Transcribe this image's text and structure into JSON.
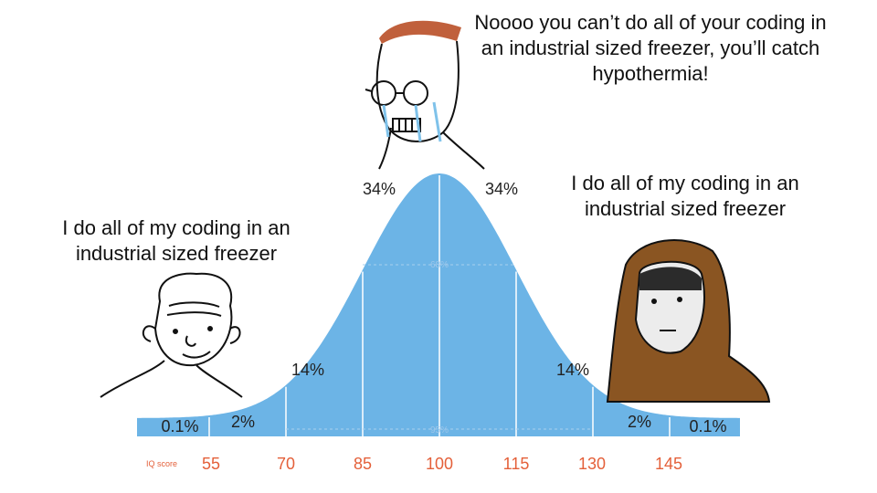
{
  "captions": {
    "top": [
      "Noooo you can’t do all of your coding in",
      "an industrial sized freezer, you’ll catch",
      "hypothermia!"
    ],
    "left": [
      "I do all of my coding in an",
      "industrial sized freezer"
    ],
    "right": [
      "I do all of my coding in an",
      "industrial sized freezer"
    ]
  },
  "curve": {
    "axis_label": "IQ score",
    "ticks": [
      "55",
      "70",
      "85",
      "100",
      "115",
      "130",
      "145"
    ],
    "segment_labels": [
      "0.1%",
      "2%",
      "14%",
      "34%",
      "34%",
      "14%",
      "2%",
      "0.1%"
    ],
    "inner_labels": [
      "68%",
      "95%"
    ]
  }
}
